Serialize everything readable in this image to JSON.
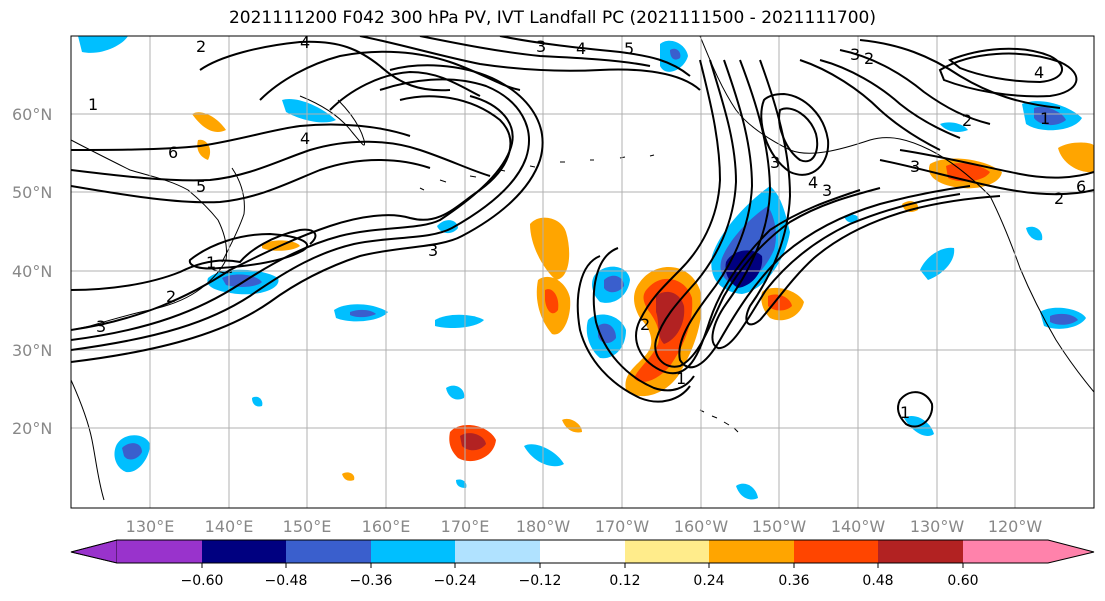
{
  "title": "2021111200 F042 300 hPa PV, IVT Landfall PC (2021111500 - 2021111700)",
  "lat_labels": [
    "60°N",
    "50°N",
    "40°N",
    "30°N",
    "20°N"
  ],
  "lon_labels": [
    "130°E",
    "140°E",
    "150°E",
    "160°E",
    "170°E",
    "180°W",
    "170°W",
    "160°W",
    "150°W",
    "140°W",
    "130°W",
    "120°W"
  ],
  "contour_labels": [
    "4",
    "3",
    "4",
    "5",
    "2",
    "1",
    "4",
    "6",
    "5",
    "1",
    "2",
    "3",
    "3",
    "3",
    "2",
    "3",
    "4",
    "3",
    "3",
    "2",
    "4",
    "1",
    "2",
    "6",
    "1",
    "1",
    "2"
  ],
  "colorbar": {
    "tick_labels": [
      "−0.60",
      "−0.48",
      "−0.36",
      "−0.24",
      "−0.12",
      "0.12",
      "0.24",
      "0.36",
      "0.48",
      "0.60"
    ],
    "colors": [
      "#9933cc",
      "#000080",
      "#3a5fcd",
      "#00bfff",
      "#b0e2ff",
      "#ffffff",
      "#ffec8b",
      "#ffa500",
      "#ff4500",
      "#b22222",
      "#ff82ab"
    ]
  },
  "colors": {
    "land_outline": "#000000",
    "grid": "#b0b0b0",
    "contour": "#000000"
  }
}
